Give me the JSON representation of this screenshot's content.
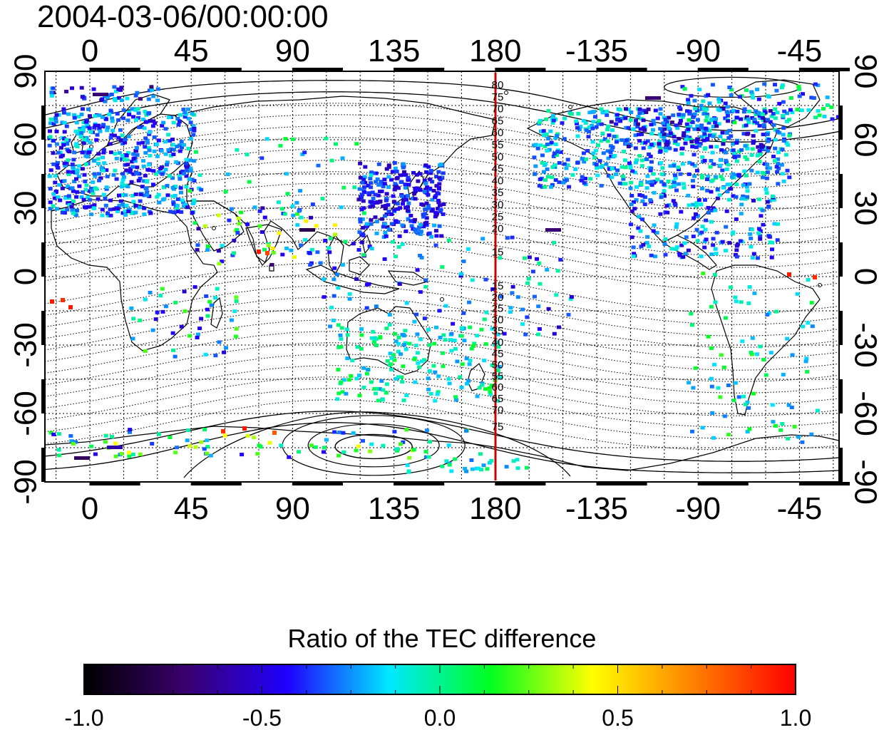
{
  "timestamp": "2004-03-06/00:00:00",
  "map": {
    "lon_labels": [
      "0",
      "45",
      "90",
      "135",
      "180",
      "-135",
      "-90",
      "-45"
    ],
    "lat_labels": [
      "90",
      "60",
      "30",
      "0",
      "-30",
      "-60",
      "-90"
    ],
    "contour_labels_north": [
      "80",
      "75",
      "70",
      "65",
      "60",
      "55",
      "50",
      "45",
      "40",
      "35",
      "30",
      "25",
      "20",
      "15"
    ],
    "contour_labels_south": [
      "15",
      "20",
      "25",
      "30",
      "35",
      "40",
      "45",
      "50",
      "55",
      "60",
      "65",
      "70",
      "75"
    ],
    "meridian_line_color": "#cc0000",
    "coastline_color": "#000000"
  },
  "colorbar": {
    "title": "Ratio of the TEC difference",
    "tick_labels": [
      "-1.0",
      "-0.5",
      "0.0",
      "0.5",
      "1.0"
    ],
    "min": -1.0,
    "max": 1.0,
    "colors": [
      "#000000",
      "#3a006e",
      "#2000ff",
      "#00e8ff",
      "#00ff20",
      "#ffff00",
      "#ff8000",
      "#ff0000"
    ]
  }
}
